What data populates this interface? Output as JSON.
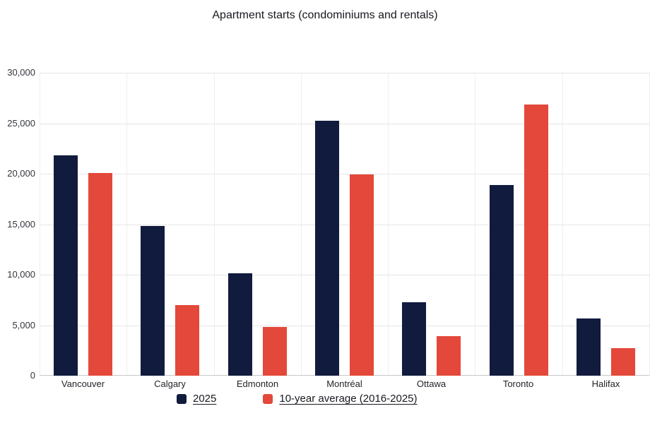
{
  "chart_data": {
    "type": "bar",
    "title": "Apartment starts (condominiums and rentals)",
    "categories": [
      "Vancouver",
      "Calgary",
      "Edmonton",
      "Montréal",
      "Ottawa",
      "Toronto",
      "Halifax"
    ],
    "series": [
      {
        "name": "2025",
        "color": "#111B3D",
        "values": [
          21850,
          14800,
          10150,
          25250,
          7300,
          18900,
          5650
        ]
      },
      {
        "name": "10-year average (2016-2025)",
        "color": "#E3483A",
        "values": [
          20100,
          7000,
          4850,
          19950,
          3900,
          26850,
          2700
        ]
      }
    ],
    "xlabel": "",
    "ylabel": "",
    "ylim": [
      0,
      30000
    ],
    "ytick_values": [
      0,
      5000,
      10000,
      15000,
      20000,
      25000,
      30000
    ],
    "ytick_labels": [
      "0",
      "5,000",
      "10,000",
      "15,000",
      "20,000",
      "25,000",
      "30,000"
    ],
    "grid": "horizontal gridlines at each 5,000 plus faint vertical category separators",
    "legend_position": "bottom"
  }
}
